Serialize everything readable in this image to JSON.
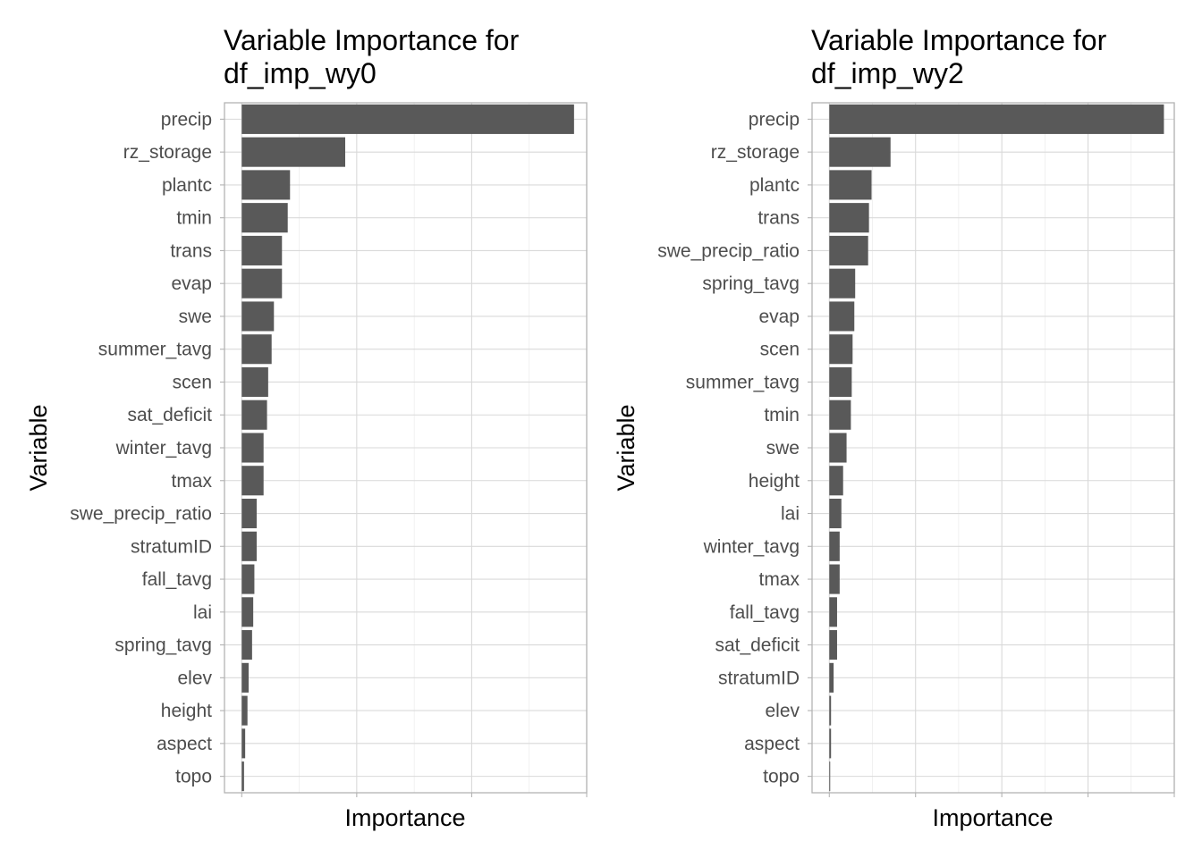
{
  "chart_data": [
    {
      "type": "bar",
      "orientation": "horizontal",
      "title_lines": [
        "Variable Importance for",
        "df_imp_wy0"
      ],
      "xlabel": "Importance",
      "ylabel": "Variable",
      "x_tick_labels_shown": false,
      "xlim": [
        -0.15,
        3.0
      ],
      "grid": true,
      "bar_color": "#595959",
      "categories": [
        "precip",
        "rz_storage",
        "plantc",
        "tmin",
        "trans",
        "evap",
        "swe",
        "summer_tavg",
        "scen",
        "sat_deficit",
        "winter_tavg",
        "tmax",
        "swe_precip_ratio",
        "stratumID",
        "fall_tavg",
        "lai",
        "spring_tavg",
        "elev",
        "height",
        "aspect",
        "topo"
      ],
      "values": [
        2.89,
        0.9,
        0.42,
        0.4,
        0.35,
        0.35,
        0.28,
        0.26,
        0.23,
        0.22,
        0.19,
        0.19,
        0.13,
        0.13,
        0.11,
        0.1,
        0.09,
        0.06,
        0.05,
        0.03,
        0.02
      ]
    },
    {
      "type": "bar",
      "orientation": "horizontal",
      "title_lines": [
        "Variable Importance for",
        "df_imp_wy2"
      ],
      "xlabel": "Importance",
      "ylabel": "Variable",
      "x_tick_labels_shown": false,
      "xlim": [
        -0.2,
        4.0
      ],
      "grid": true,
      "bar_color": "#595959",
      "categories": [
        "precip",
        "rz_storage",
        "plantc",
        "trans",
        "swe_precip_ratio",
        "spring_tavg",
        "evap",
        "scen",
        "summer_tavg",
        "tmin",
        "swe",
        "height",
        "lai",
        "winter_tavg",
        "tmax",
        "fall_tavg",
        "sat_deficit",
        "stratumID",
        "elev",
        "aspect",
        "topo"
      ],
      "values": [
        3.88,
        0.71,
        0.49,
        0.46,
        0.45,
        0.3,
        0.29,
        0.27,
        0.26,
        0.25,
        0.2,
        0.16,
        0.14,
        0.12,
        0.12,
        0.09,
        0.09,
        0.05,
        0.02,
        0.02,
        0.01
      ]
    }
  ]
}
